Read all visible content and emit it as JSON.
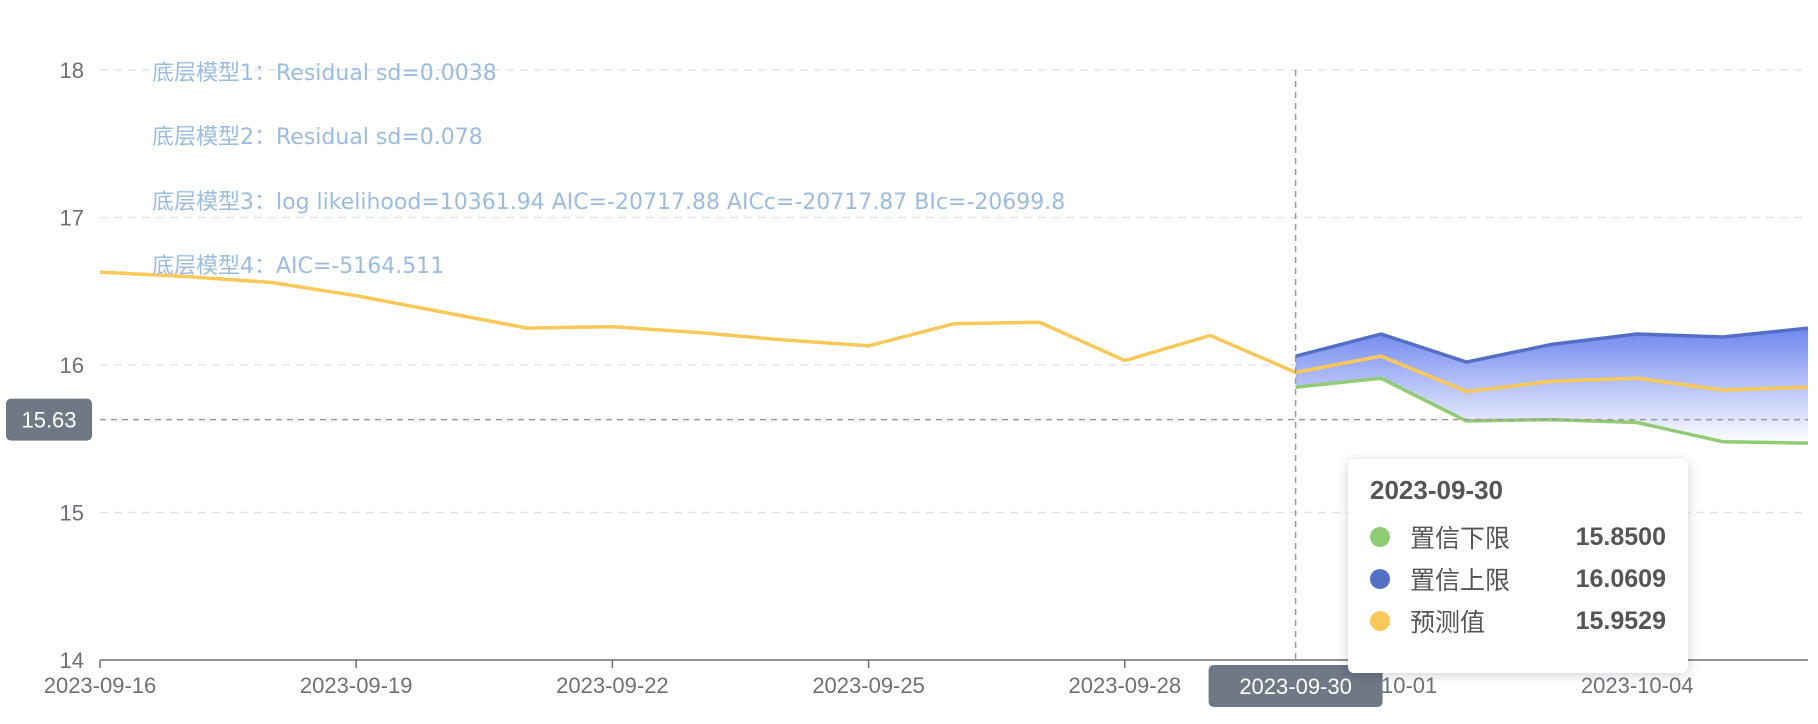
{
  "chart_data": {
    "type": "line",
    "x": [
      "2023-09-16",
      "2023-09-17",
      "2023-09-18",
      "2023-09-19",
      "2023-09-20",
      "2023-09-21",
      "2023-09-22",
      "2023-09-23",
      "2023-09-24",
      "2023-09-25",
      "2023-09-26",
      "2023-09-27",
      "2023-09-28",
      "2023-09-29",
      "2023-09-30",
      "2023-10-01",
      "2023-10-02",
      "2023-10-03",
      "2023-10-04",
      "2023-10-05",
      "2023-10-06"
    ],
    "x_tick_labels": [
      "2023-09-16",
      "2023-09-19",
      "2023-09-22",
      "2023-09-25",
      "2023-09-28",
      "2023-10-01",
      "2023-10-04"
    ],
    "x_tick_dates": [
      "2023-09-16",
      "2023-09-19",
      "2023-09-22",
      "2023-09-25",
      "2023-09-28",
      "2023-10-01",
      "2023-10-04"
    ],
    "ylim": [
      14,
      18
    ],
    "y_ticks": [
      14,
      15,
      16,
      17,
      18
    ],
    "grid": true,
    "series": [
      {
        "name": "预测值",
        "color": "#fac858",
        "values": [
          16.63,
          16.6,
          16.56,
          16.47,
          16.36,
          16.25,
          16.26,
          16.22,
          16.17,
          16.13,
          16.28,
          16.29,
          16.03,
          16.2,
          15.95,
          16.06,
          15.82,
          15.89,
          15.91,
          15.83,
          15.85
        ]
      },
      {
        "name": "置信下限",
        "color": "#91cc75",
        "values": [
          null,
          null,
          null,
          null,
          null,
          null,
          null,
          null,
          null,
          null,
          null,
          null,
          null,
          null,
          15.85,
          15.91,
          15.62,
          15.63,
          15.61,
          15.48,
          15.47
        ]
      },
      {
        "name": "置信上限",
        "color": "#5470c6",
        "values": [
          null,
          null,
          null,
          null,
          null,
          null,
          null,
          null,
          null,
          null,
          null,
          null,
          null,
          null,
          16.06,
          16.21,
          16.02,
          16.14,
          16.21,
          16.19,
          16.25
        ]
      }
    ],
    "annotations": [
      "底层模型1：Residual sd=0.0038",
      "底层模型2：Residual sd=0.078",
      "底层模型3：log likelihood=10361.94 AIC=-20717.88 AICc=-20717.87 BIc=-20699.8",
      "底层模型4：AIC=-5164.511"
    ],
    "axis_pointer": {
      "x": "2023-09-30",
      "x_label": "2023-09-30",
      "y": 15.63,
      "y_label": "15.63"
    },
    "band_color_top": "#6f86f0",
    "band_color_bottom": "#ffffff"
  },
  "tooltip": {
    "title": "2023-09-30",
    "rows": [
      {
        "name": "置信下限",
        "value": "15.8500",
        "color": "#91cc75"
      },
      {
        "name": "置信上限",
        "value": "16.0609",
        "color": "#5470c6"
      },
      {
        "name": "预测值",
        "value": "15.9529",
        "color": "#fac858"
      }
    ]
  }
}
